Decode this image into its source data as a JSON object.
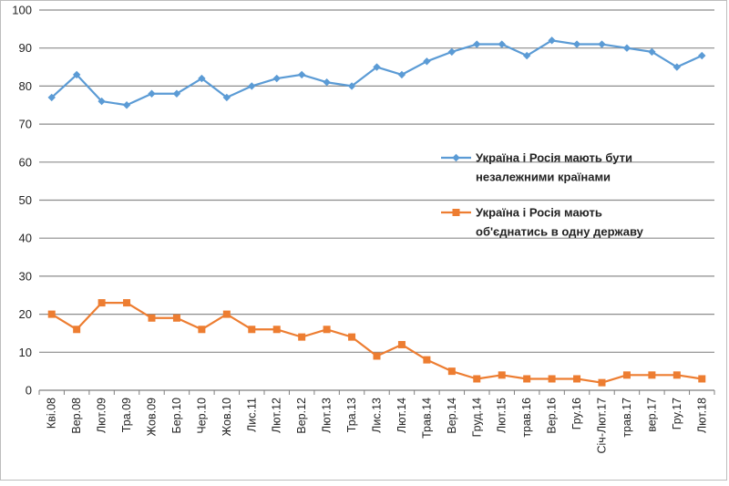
{
  "chart_data": {
    "type": "line",
    "title": "",
    "xlabel": "",
    "ylabel": "",
    "ylim": [
      0,
      100
    ],
    "yticks": [
      0,
      10,
      20,
      30,
      40,
      50,
      60,
      70,
      80,
      90,
      100
    ],
    "grid": "horizontal",
    "legend_position": "right-middle",
    "categories": [
      "Кві.08",
      "Вер.08",
      "Лют.09",
      "Тра.09",
      "Жов.09",
      "Бер.10",
      "Чер.10",
      "Жов.10",
      "Лис.11",
      "Лют.12",
      "Вер.12",
      "Лют.13",
      "Тра.13",
      "Лис.13",
      "Лют.14",
      "Трав.14",
      "Вер.14",
      "Груд.14",
      "Лют.15",
      "трав.16",
      "Вер.16",
      "Гру.16",
      "Січ-Лют.17",
      "трав.17",
      "вер.17",
      "Гру.17",
      "Лют.18"
    ],
    "series": [
      {
        "name": "Україна  і Росія  мають  бути незалежними країнами",
        "legend_lines": [
          "Україна  і Росія  мають  бути",
          "незалежними країнами"
        ],
        "color": "#5B9BD5",
        "marker": "diamond",
        "values": [
          77,
          83,
          76,
          75,
          78,
          78,
          82,
          77,
          80,
          82,
          83,
          81,
          80,
          85,
          83,
          86.5,
          89,
          91,
          91,
          88,
          92,
          91,
          91,
          90,
          89,
          85,
          88
        ]
      },
      {
        "name": "Україна  і Росія  мають об'єднатись  в одну державу",
        "legend_lines": [
          "Україна  і Росія  мають",
          "об'єднатись  в одну державу"
        ],
        "color": "#ED7D31",
        "marker": "square",
        "values": [
          20,
          16,
          23,
          23,
          19,
          19,
          16,
          20,
          16,
          16,
          14,
          16,
          14,
          9,
          12,
          8,
          5,
          3,
          4,
          3,
          3,
          3,
          2,
          4,
          4,
          4,
          3
        ]
      }
    ]
  }
}
